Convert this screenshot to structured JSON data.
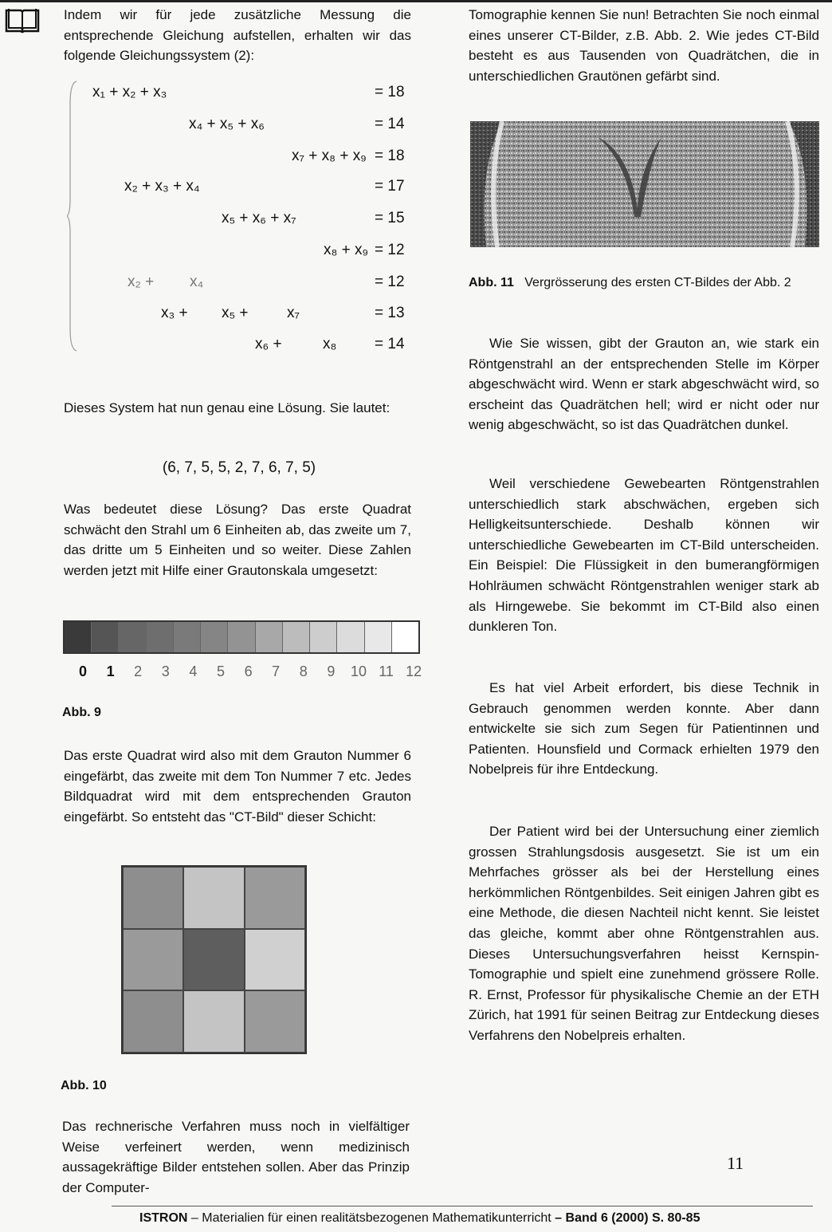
{
  "left_column": {
    "intro": "Indem wir für jede zusätzliche Messung die entsprechende Gleichung aufstellen, erhalten wir das folgende Gleichungssystem (2):",
    "equations": {
      "row1": "x₁ + x₂ + x₃",
      "rhs1": "= 18",
      "row2": "x₄ + x₅ + x₆",
      "rhs2": "= 14",
      "row3": "x₇ + x₈ + x₉",
      "rhs3": "= 18",
      "row4": "x₂ + x₃ + x₄",
      "rhs4": "= 17",
      "row5": "x₅ + x₆ + x₇",
      "rhs5": "= 15",
      "row6": "x₈ + x₉",
      "rhs6": "= 12",
      "row7a": "x₂ +",
      "row7b": "x₄",
      "rhs7": "= 12",
      "row8a": "x₃ +",
      "row8b": "x₅ +",
      "row8c": "x₇",
      "rhs8": "= 13",
      "row9a": "x₆ +",
      "row9b": "x₈",
      "rhs9": "= 14"
    },
    "solution_intro": "Dieses System hat nun genau eine Lösung. Sie lautet:",
    "solution": "(6, 7, 5, 5, 2, 7, 6, 7, 5)",
    "meaning": "Was bedeutet diese Lösung? Das erste Quadrat schwächt den Strahl um 6 Einheiten ab, das zweite um 7, das dritte um 5 Einheiten und so weiter. Diese Zahlen werden jetzt mit Hilfe einer Grautonskala umgesetzt:",
    "gray_scale": {
      "labels": [
        "0",
        "1",
        "2",
        "3",
        "4",
        "5",
        "6",
        "7",
        "8",
        "9",
        "10",
        "11",
        "12"
      ],
      "colors": [
        "#3a3a3a",
        "#555555",
        "#666666",
        "#6e6e6e",
        "#7a7a7a",
        "#858585",
        "#939393",
        "#a8a8a8",
        "#bcbcbc",
        "#cdcdcd",
        "#dcdcdc",
        "#e8e8e8",
        "#ffffff"
      ]
    },
    "caption_9": "Abb. 9",
    "para_color": "Das erste Quadrat wird also mit dem Grauton Nummer 6 eingefärbt, das zweite mit dem Ton Nummer 7 etc. Jedes Bildquadrat wird mit dem entsprechenden Grauton eingefärbt. So entsteht das \"CT-Bild\" dieser Schicht:",
    "ct_grid_colors": [
      "#8e8e8e",
      "#c4c4c4",
      "#9a9a9a",
      "#9a9a9a",
      "#5e5e5e",
      "#d0d0d0",
      "#8e8e8e",
      "#c4c4c4",
      "#9a9a9a"
    ],
    "caption_10": "Abb. 10",
    "para_refine": "Das rechnerische Verfahren muss noch in vielfältiger Weise verfeinert werden, wenn medizinisch aussagekräftige Bilder entstehen sollen. Aber das Prinzip der Computer-"
  },
  "right_column": {
    "para_top": "Tomographie kennen Sie nun! Betrachten Sie noch einmal eines unserer CT-Bilder, z.B. Abb. 2. Wie jedes CT-Bild besteht es aus Tausenden von Quadrätchen, die in unterschiedlichen Grautönen gefärbt sind.",
    "caption_11_label": "Abb. 11",
    "caption_11_text": "Vergrösserung des ersten CT-Bildes der Abb. 2",
    "para_gray": "Wie Sie wissen, gibt der Grauton an, wie stark ein Röntgenstrahl an der entsprechenden Stelle im Körper abgeschwächt wird. Wenn er stark abgeschwächt wird, so erscheint das Quadrätchen hell; wird er nicht oder nur wenig abgeschwächt, so ist das Quadrätchen dunkel.",
    "para_tissue": "Weil verschiedene Gewebearten Röntgenstrahlen unterschiedlich stark abschwächen, ergeben sich Helligkeitsunterschiede. Deshalb können wir unterschiedliche Gewebearten im CT-Bild unterscheiden. Ein Beispiel: Die Flüssigkeit in den bumerangförmigen Hohlräumen schwächt Röntgenstrahlen weniger stark ab als Hirngewebe. Sie bekommt im CT-Bild also einen dunkleren Ton.",
    "para_nobel": "Es hat viel Arbeit erfordert, bis diese Technik in Gebrauch genommen werden konnte. Aber dann entwickelte sie sich zum Segen für Patientinnen und Patienten. Hounsfield und Cormack erhielten 1979 den Nobelpreis für ihre Entdeckung.",
    "para_mri": "Der Patient wird bei der Untersuchung einer ziemlich grossen Strahlungsdosis ausgesetzt. Sie ist um ein Mehrfaches grösser als bei der Herstellung eines herkömmlichen Röntgenbildes. Seit einigen Jahren gibt es eine Methode, die diesen Nachteil nicht kennt. Sie leistet das gleiche, kommt aber ohne Röntgenstrahlen aus. Dieses Untersuchungsverfahren heisst Kernspin-Tomographie und spielt eine zunehmend grössere Rolle. R. Ernst, Professor für physikalische Chemie an der ETH Zürich, hat 1991 für seinen Beitrag zur Entdeckung dieses Verfahrens den Nobelpreis erhalten."
  },
  "page_number": "11",
  "footer": {
    "brand": "ISTRON",
    "dash": " – ",
    "series": "Materialien für einen realitätsbezogenen Mathematikunterricht",
    "volume": " – Band 6 (2000) S. 80-85"
  }
}
